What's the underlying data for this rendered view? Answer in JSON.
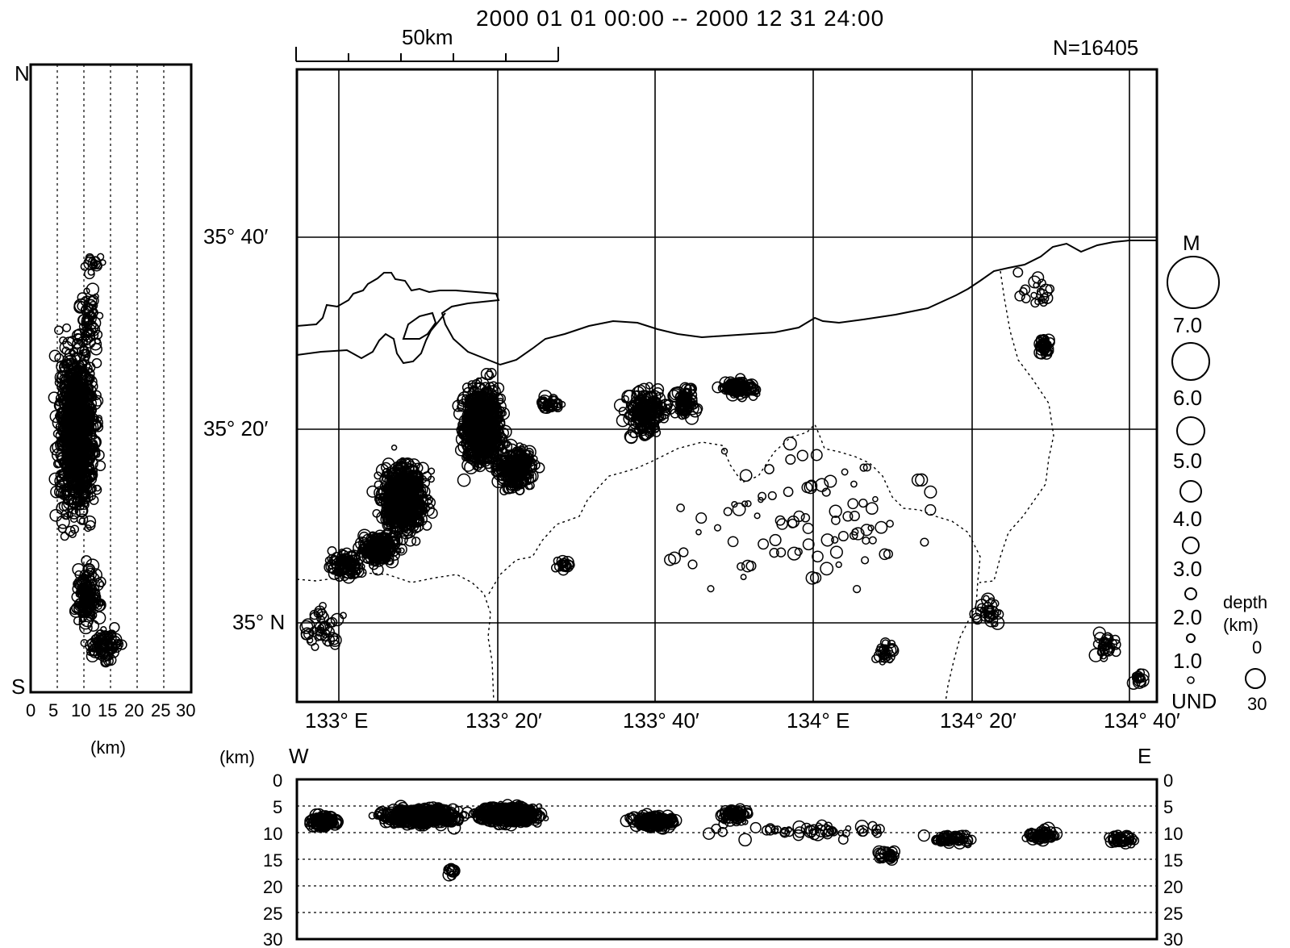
{
  "header": {
    "period": "2000  01  01  00:00  --  2000  12  31  24:00",
    "count": "N=16405",
    "scale_label": "50km"
  },
  "map": {
    "lon_labels": [
      "133° E",
      "133° 20′",
      "133° 40′",
      "134° E",
      "134° 20′",
      "134° 40′"
    ],
    "lat_labels": [
      "35° 40′",
      "35° 20′",
      "35° N"
    ]
  },
  "ns_panel": {
    "north": "N",
    "south": "S",
    "ticks": [
      "0",
      "5",
      "10",
      "15",
      "20",
      "25",
      "30"
    ],
    "unit": "(km)"
  },
  "ew_panel": {
    "west": "W",
    "east": "E",
    "unit": "(km)",
    "depth_ticks": [
      "0",
      "5",
      "10",
      "15",
      "20",
      "25",
      "30"
    ]
  },
  "legend": {
    "magnitude_title": "M",
    "magnitudes": [
      "7.0",
      "6.0",
      "5.0",
      "4.0",
      "3.0",
      "2.0",
      "1.0",
      "UND"
    ],
    "depth_title": "depth",
    "depth_unit": "(km)",
    "depth_min": "0",
    "depth_max": "30"
  },
  "colors": {
    "ink": "#000000",
    "paper": "#ffffff"
  }
}
